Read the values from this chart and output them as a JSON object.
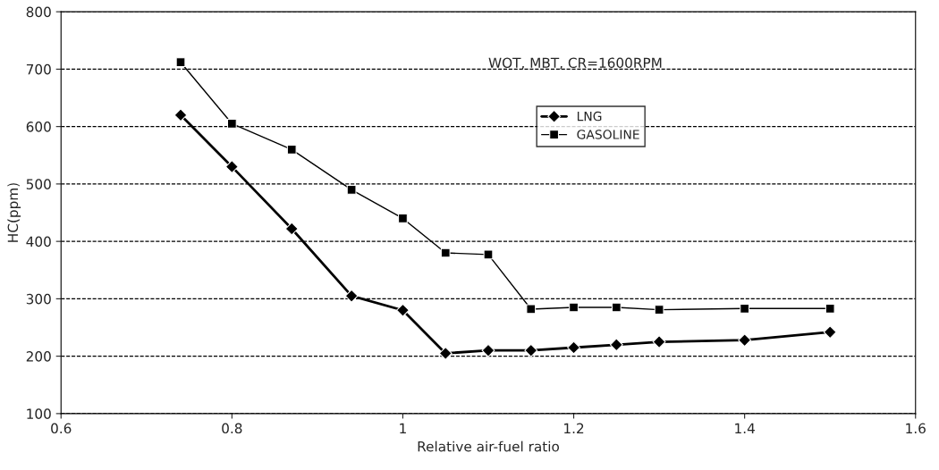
{
  "chart_data": {
    "type": "line",
    "xlabel": "Relative air-fuel ratio",
    "ylabel": "HC(ppm)",
    "annotations": [
      "WOT, MBT, CR=1600RPM"
    ],
    "x": [
      0.74,
      0.8,
      0.87,
      0.94,
      1.0,
      1.05,
      1.1,
      1.15,
      1.2,
      1.25,
      1.3,
      1.4,
      1.5
    ],
    "series": [
      {
        "name": "LNG",
        "color": "#000000",
        "marker": "diamond",
        "values": [
          620,
          530,
          422,
          305,
          280,
          205,
          210,
          210,
          215,
          220,
          225,
          228,
          242
        ]
      },
      {
        "name": "GASOLINE",
        "color": "#000000",
        "marker": "square",
        "values": [
          712,
          605,
          560,
          490,
          440,
          380,
          377,
          282,
          285,
          285,
          281,
          283,
          283
        ]
      }
    ],
    "xlim": [
      0.6,
      1.6
    ],
    "xticks": [
      0.6,
      0.8,
      {
        "value": 1,
        "label": "1"
      },
      1.2,
      1.4,
      1.6
    ],
    "ylim": [
      100,
      800
    ],
    "yticks": [
      100,
      200,
      300,
      400,
      500,
      600,
      700,
      800
    ],
    "grid": "y",
    "legend": "top",
    "line_style": "solid"
  }
}
